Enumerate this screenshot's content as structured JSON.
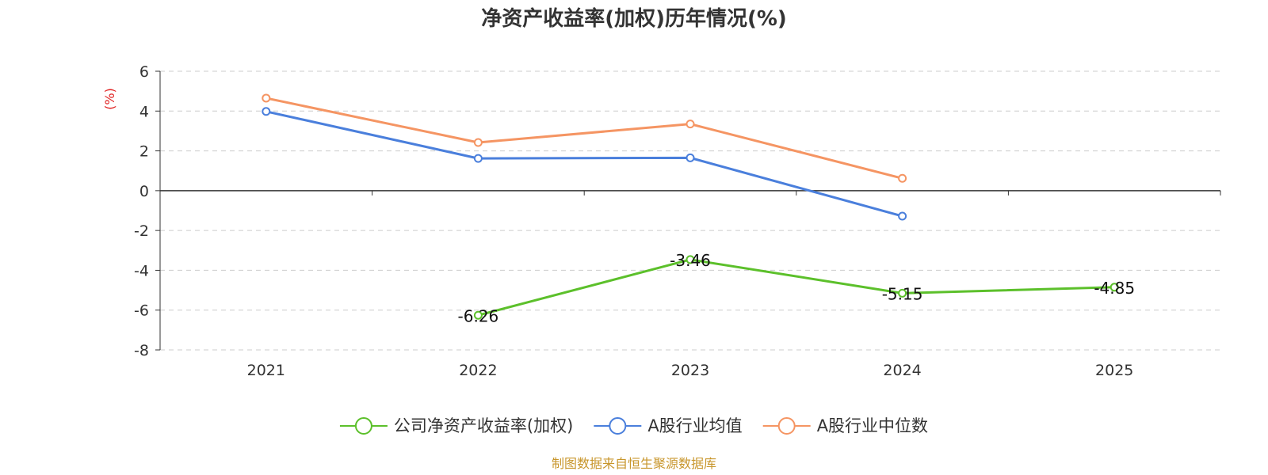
{
  "chart_data": {
    "type": "line",
    "title": "净资产收益率(加权)历年情况(%)",
    "ylabel": "(%)",
    "xlabel": "",
    "categories": [
      "2021",
      "2022",
      "2023",
      "2024",
      "2025"
    ],
    "ylim": [
      -8,
      6
    ],
    "yticks": [
      6,
      4,
      2,
      0,
      -2,
      -4,
      -6,
      -8
    ],
    "grid": true,
    "legend_position": "bottom",
    "series": [
      {
        "name": "公司净资产收益率(加权)",
        "color": "#5cc02b",
        "values": [
          null,
          -6.26,
          -3.46,
          -5.15,
          -4.85
        ],
        "data_labels": [
          null,
          "-6.26",
          "-3.46",
          "-5.15",
          "-4.85"
        ]
      },
      {
        "name": "A股行业均值",
        "color": "#4a7fdc",
        "values": [
          3.98,
          1.62,
          1.65,
          -1.28,
          null
        ],
        "data_labels": []
      },
      {
        "name": "A股行业中位数",
        "color": "#f59563",
        "values": [
          4.65,
          2.42,
          3.35,
          0.62,
          null
        ],
        "data_labels": []
      }
    ]
  },
  "colors": {
    "ylabel": "#e02020",
    "source": "#c8962c",
    "axis": "#333333",
    "grid": "#cccccc"
  },
  "source_text": "制图数据来自恒生聚源数据库"
}
